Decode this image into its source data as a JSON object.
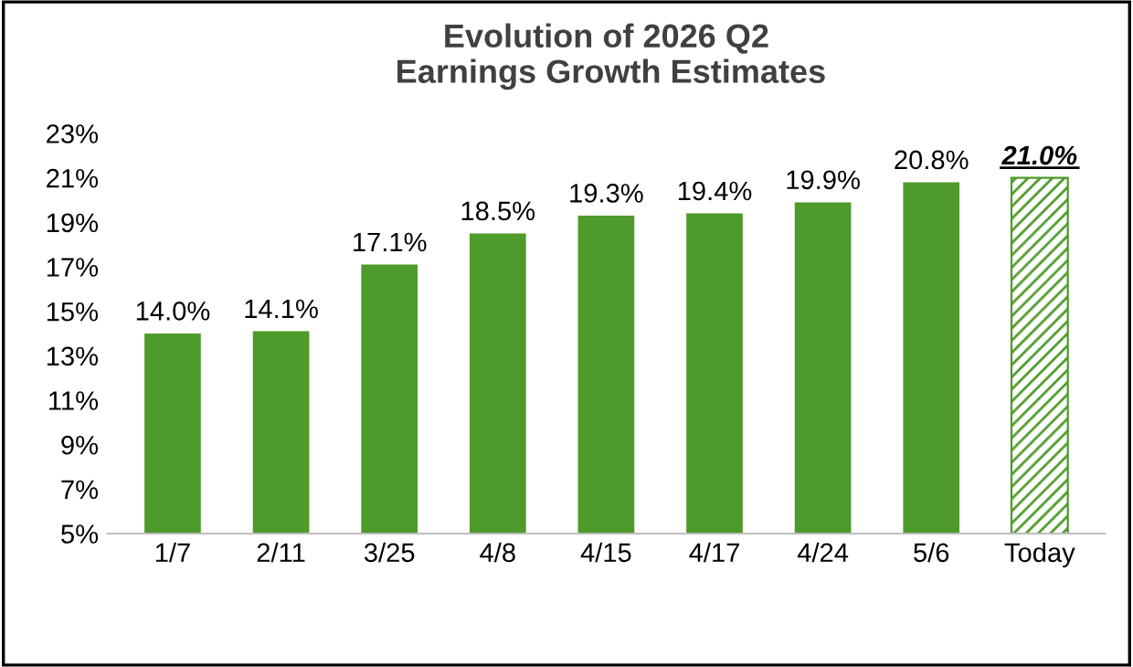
{
  "chart_data": {
    "type": "bar",
    "title": "Evolution of 2026 Q2\n Earnings Growth Estimates",
    "categories": [
      "1/7",
      "2/11",
      "3/25",
      "4/8",
      "4/15",
      "4/17",
      "4/24",
      "5/6",
      "Today"
    ],
    "values": [
      14.0,
      14.1,
      17.1,
      18.5,
      19.3,
      19.4,
      19.9,
      20.8,
      21.0
    ],
    "value_labels": [
      "14.0%",
      "14.1%",
      "17.1%",
      "18.5%",
      "19.3%",
      "19.4%",
      "19.9%",
      "20.8%",
      "21.0%"
    ],
    "colors": [
      "#4e9a2a",
      "#4e9a2a",
      "#4e9a2a",
      "#4e9a2a",
      "#4e9a2a",
      "#4e9a2a",
      "#4e9a2a",
      "#4e9a2a",
      "#4e9a2a"
    ],
    "ylim": [
      5,
      23
    ],
    "yticks": [
      {
        "value": 5,
        "label": "5%"
      },
      {
        "value": 7,
        "label": "7%"
      },
      {
        "value": 9,
        "label": "9%"
      },
      {
        "value": 11,
        "label": "11%"
      },
      {
        "value": 13,
        "label": "13%"
      },
      {
        "value": 15,
        "label": "15%"
      },
      {
        "value": 17,
        "label": "17%"
      },
      {
        "value": 19,
        "label": "19%"
      },
      {
        "value": 21,
        "label": "21%"
      },
      {
        "value": 23,
        "label": "23%"
      }
    ],
    "grid": false,
    "legend": false
  }
}
